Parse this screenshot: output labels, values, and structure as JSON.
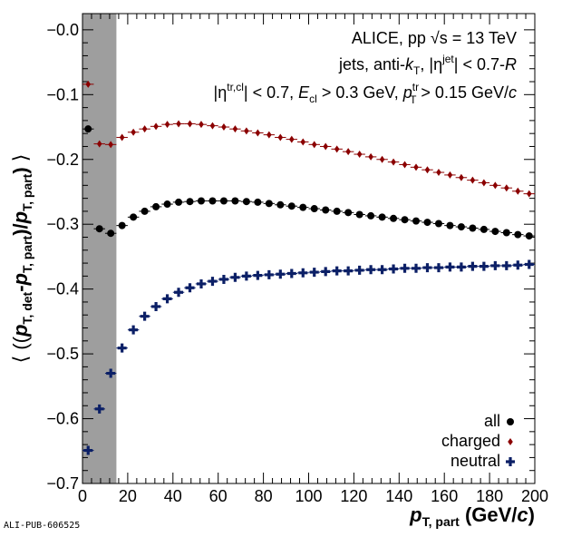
{
  "chart_data": {
    "type": "scatter",
    "x_axis": {
      "label_main": "p",
      "label_sub": "T, part",
      "label_unit_open": " (GeV/",
      "label_unit_c": "c",
      "label_unit_close": ")",
      "range": [
        0,
        200
      ],
      "ticks": [
        "0",
        "20",
        "40",
        "60",
        "80",
        "100",
        "120",
        "140",
        "160",
        "180",
        "200"
      ]
    },
    "y_axis": {
      "label": "⟨ ((p_T,det - p_T,part)/p_T,part) ⟩",
      "range": [
        -0.7,
        0.025
      ],
      "ticks": [
        "−0.0",
        "−0.1",
        "−0.2",
        "−0.3",
        "−0.4",
        "−0.5",
        "−0.6",
        "−0.7"
      ]
    },
    "shaded_region": {
      "x": [
        0,
        15
      ],
      "color": "#9e9e9e"
    },
    "annotations": {
      "line1": "ALICE, pp  √s = 13 TeV",
      "line2": "jets, anti-k_T, |η^jet| < 0.7-R",
      "line3": "|η^tr,cl| < 0.7, E_cl > 0.3 GeV, p_T^tr > 0.15 GeV/c"
    },
    "legend": {
      "position": "bottom-right",
      "entries": [
        "all",
        "charged",
        "neutral"
      ]
    },
    "series": [
      {
        "name": "all",
        "color": "#000000",
        "marker": "circle",
        "x": [
          2.5,
          7.5,
          12.5,
          17.5,
          22.5,
          27.5,
          32.5,
          37.5,
          42.5,
          47.5,
          52.5,
          57.5,
          62.5,
          67.5,
          72.5,
          77.5,
          82.5,
          87.5,
          92.5,
          97.5,
          102.5,
          107.5,
          112.5,
          117.5,
          122.5,
          127.5,
          132.5,
          137.5,
          142.5,
          147.5,
          152.5,
          157.5,
          162.5,
          167.5,
          172.5,
          177.5,
          182.5,
          187.5,
          192.5,
          197.5
        ],
        "y": [
          -0.153,
          -0.307,
          -0.314,
          -0.302,
          -0.289,
          -0.28,
          -0.273,
          -0.269,
          -0.266,
          -0.265,
          -0.264,
          -0.264,
          -0.264,
          -0.264,
          -0.265,
          -0.266,
          -0.268,
          -0.27,
          -0.272,
          -0.274,
          -0.276,
          -0.278,
          -0.28,
          -0.282,
          -0.285,
          -0.287,
          -0.289,
          -0.291,
          -0.293,
          -0.295,
          -0.297,
          -0.299,
          -0.302,
          -0.304,
          -0.306,
          -0.308,
          -0.311,
          -0.313,
          -0.316,
          -0.318
        ]
      },
      {
        "name": "charged",
        "color": "#8b0000",
        "marker": "diamond",
        "x": [
          2.5,
          7.5,
          12.5,
          17.5,
          22.5,
          27.5,
          32.5,
          37.5,
          42.5,
          47.5,
          52.5,
          57.5,
          62.5,
          67.5,
          72.5,
          77.5,
          82.5,
          87.5,
          92.5,
          97.5,
          102.5,
          107.5,
          112.5,
          117.5,
          122.5,
          127.5,
          132.5,
          137.5,
          142.5,
          147.5,
          152.5,
          157.5,
          162.5,
          167.5,
          172.5,
          177.5,
          182.5,
          187.5,
          192.5,
          197.5
        ],
        "y": [
          -0.084,
          -0.176,
          -0.177,
          -0.166,
          -0.158,
          -0.153,
          -0.149,
          -0.146,
          -0.145,
          -0.145,
          -0.146,
          -0.148,
          -0.15,
          -0.153,
          -0.156,
          -0.159,
          -0.162,
          -0.166,
          -0.169,
          -0.173,
          -0.177,
          -0.18,
          -0.184,
          -0.188,
          -0.192,
          -0.196,
          -0.2,
          -0.204,
          -0.208,
          -0.212,
          -0.216,
          -0.22,
          -0.224,
          -0.228,
          -0.232,
          -0.236,
          -0.24,
          -0.244,
          -0.249,
          -0.253
        ]
      },
      {
        "name": "neutral",
        "color": "#0b1f66",
        "marker": "cross",
        "x": [
          2.5,
          7.5,
          12.5,
          17.5,
          22.5,
          27.5,
          32.5,
          37.5,
          42.5,
          47.5,
          52.5,
          57.5,
          62.5,
          67.5,
          72.5,
          77.5,
          82.5,
          87.5,
          92.5,
          97.5,
          102.5,
          107.5,
          112.5,
          117.5,
          122.5,
          127.5,
          132.5,
          137.5,
          142.5,
          147.5,
          152.5,
          157.5,
          162.5,
          167.5,
          172.5,
          177.5,
          182.5,
          187.5,
          192.5,
          197.5
        ],
        "y": [
          -0.649,
          -0.585,
          -0.53,
          -0.491,
          -0.463,
          -0.442,
          -0.427,
          -0.415,
          -0.405,
          -0.398,
          -0.392,
          -0.388,
          -0.385,
          -0.382,
          -0.38,
          -0.379,
          -0.378,
          -0.377,
          -0.376,
          -0.375,
          -0.374,
          -0.373,
          -0.372,
          -0.372,
          -0.371,
          -0.37,
          -0.37,
          -0.369,
          -0.368,
          -0.368,
          -0.367,
          -0.367,
          -0.366,
          -0.366,
          -0.365,
          -0.365,
          -0.364,
          -0.364,
          -0.363,
          -0.362
        ]
      }
    ]
  },
  "footer": "ALI-PUB-606525"
}
